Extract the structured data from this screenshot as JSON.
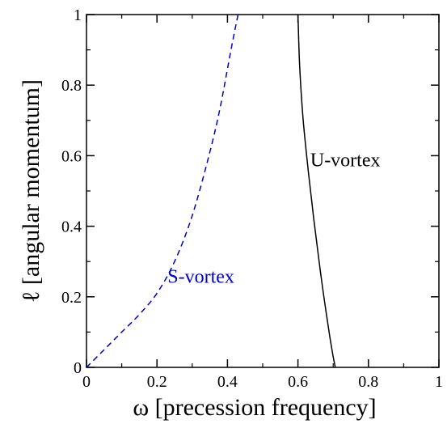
{
  "chart_data": {
    "type": "line",
    "title": "",
    "xlabel": "ω [precession frequency]",
    "ylabel": "ℓ [angular momentum]",
    "xlim": [
      0,
      1
    ],
    "ylim": [
      0,
      1
    ],
    "x_ticks": [
      "0",
      "0.2",
      "0.4",
      "0.6",
      "0.8",
      "1"
    ],
    "y_ticks": [
      "0",
      "0.2",
      "0.4",
      "0.6",
      "0.8",
      "1"
    ],
    "grid": false,
    "legend": "none",
    "series": [
      {
        "name": "S-vortex",
        "color": "#0000cc",
        "style": "dashed",
        "x": [
          0,
          0.05,
          0.1,
          0.15,
          0.2,
          0.25,
          0.3,
          0.35,
          0.38,
          0.41,
          0.43
        ],
        "y": [
          0,
          0.05,
          0.1,
          0.15,
          0.21,
          0.3,
          0.43,
          0.61,
          0.74,
          0.9,
          1.0
        ]
      },
      {
        "name": "U-vortex",
        "color": "#000000",
        "style": "solid",
        "x": [
          0.6,
          0.605,
          0.615,
          0.63,
          0.645,
          0.66,
          0.675,
          0.69,
          0.7,
          0.706
        ],
        "y": [
          1.0,
          0.85,
          0.7,
          0.55,
          0.42,
          0.3,
          0.19,
          0.09,
          0.03,
          0.0
        ]
      }
    ],
    "annotations": [
      {
        "text": "S-vortex",
        "x": 0.23,
        "y": 0.24,
        "color": "#0000cc"
      },
      {
        "text": "U-vortex",
        "x": 0.635,
        "y": 0.57,
        "color": "#000000"
      }
    ]
  }
}
